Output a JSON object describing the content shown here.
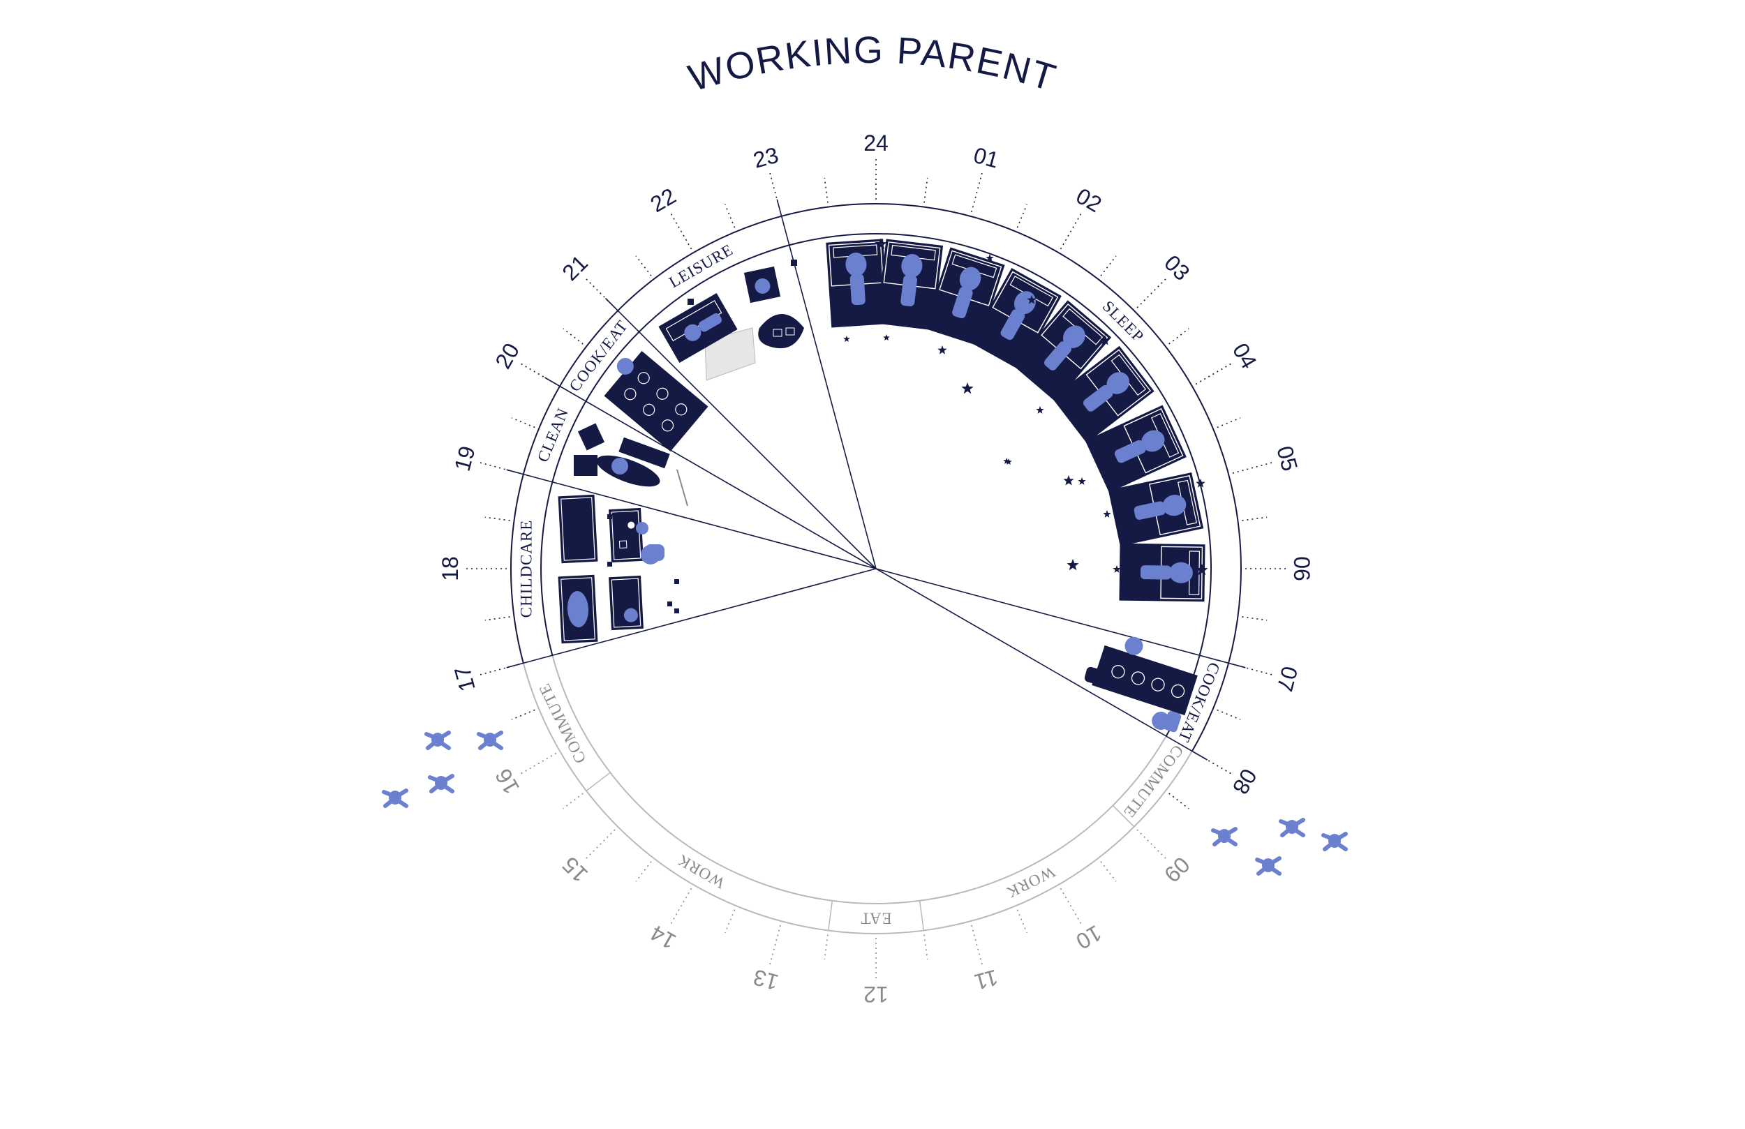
{
  "title": "WORKING PARENT",
  "colors": {
    "ink": "#151a45",
    "figure": "#6b80cf",
    "grey": "#8a8a8a",
    "light": "#b9b9b9"
  },
  "hours": [
    {
      "label": "24",
      "hour": 24,
      "active": true
    },
    {
      "label": "01",
      "hour": 1,
      "active": true
    },
    {
      "label": "02",
      "hour": 2,
      "active": true
    },
    {
      "label": "03",
      "hour": 3,
      "active": true
    },
    {
      "label": "04",
      "hour": 4,
      "active": true
    },
    {
      "label": "05",
      "hour": 5,
      "active": true
    },
    {
      "label": "06",
      "hour": 6,
      "active": true
    },
    {
      "label": "07",
      "hour": 7,
      "active": true
    },
    {
      "label": "08",
      "hour": 8,
      "active": true
    },
    {
      "label": "09",
      "hour": 9,
      "active": false
    },
    {
      "label": "10",
      "hour": 10,
      "active": false
    },
    {
      "label": "11",
      "hour": 11,
      "active": false
    },
    {
      "label": "12",
      "hour": 12,
      "active": false
    },
    {
      "label": "13",
      "hour": 13,
      "active": false
    },
    {
      "label": "14",
      "hour": 14,
      "active": false
    },
    {
      "label": "15",
      "hour": 15,
      "active": false
    },
    {
      "label": "16",
      "hour": 16,
      "active": false
    },
    {
      "label": "17",
      "hour": 17,
      "active": true
    },
    {
      "label": "18",
      "hour": 18,
      "active": true
    },
    {
      "label": "19",
      "hour": 19,
      "active": true
    },
    {
      "label": "20",
      "hour": 20,
      "active": true
    },
    {
      "label": "21",
      "hour": 21,
      "active": true
    },
    {
      "label": "22",
      "hour": 22,
      "active": true
    },
    {
      "label": "23",
      "hour": 23,
      "active": true
    }
  ],
  "activities": [
    {
      "label": "SLEEP",
      "start": 23,
      "end": 31,
      "active": true
    },
    {
      "label": "COOK/EAT",
      "start": 31,
      "end": 32,
      "active": true
    },
    {
      "label": "COMMUTE",
      "start": 32,
      "end": 33,
      "active": false
    },
    {
      "label": "WORK",
      "start": 33,
      "end": 35.5,
      "active": false
    },
    {
      "label": "EAT",
      "start": 35.5,
      "end": 36.5,
      "active": false
    },
    {
      "label": "WORK",
      "start": 36.5,
      "end": 39.5,
      "active": false
    },
    {
      "label": "COMMUTE",
      "start": 39.5,
      "end": 41,
      "active": false
    },
    {
      "label": "CHILDCARE",
      "start": 41,
      "end": 43,
      "active": true
    },
    {
      "label": "CLEAN",
      "start": 43,
      "end": 44,
      "active": true
    },
    {
      "label": "COOK/EAT",
      "start": 44,
      "end": 45,
      "active": true
    },
    {
      "label": "LEISURE",
      "start": 45,
      "end": 47,
      "active": true
    }
  ],
  "boundaries": [
    17,
    19,
    20,
    21,
    23,
    31,
    32
  ]
}
